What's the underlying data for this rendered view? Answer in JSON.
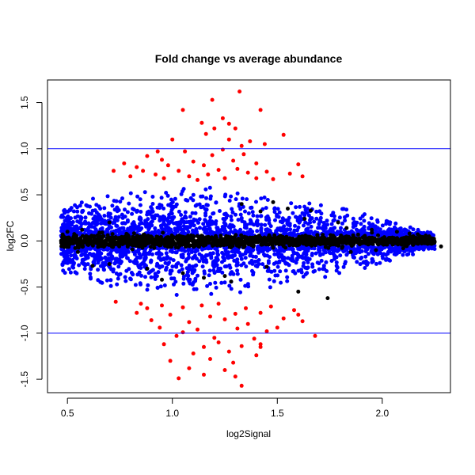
{
  "chart_data": {
    "type": "scatter",
    "title": "Fold change vs average abundance",
    "xlabel": "log2Signal",
    "ylabel": "log2FC",
    "xlim": [
      0.405,
      2.325
    ],
    "ylim": [
      -1.645,
      1.745
    ],
    "x_ticks": [
      0.5,
      1.0,
      1.5,
      2.0
    ],
    "x_tick_labels": [
      "0.5",
      "1.0",
      "1.5",
      "2.0"
    ],
    "y_ticks": [
      -1.5,
      -1.0,
      -0.5,
      0.0,
      0.5,
      1.0,
      1.5
    ],
    "y_tick_labels": [
      "-1.5",
      "-1.0",
      "-0.5",
      "0.0",
      "0.5",
      "1.0",
      "1.5"
    ],
    "grid": false,
    "legend": "none",
    "reference_lines": [
      {
        "axis": "y",
        "value": 1.0,
        "color": "#0000ff"
      },
      {
        "axis": "y",
        "value": -1.0,
        "color": "#0000ff"
      }
    ],
    "colors": {
      "not_significant": "#000000",
      "significant": "#0000ff",
      "significant_large_fc": "#ff0000"
    },
    "series": [
      {
        "color": "#ff0000",
        "points": [
          [
            1.32,
            1.62
          ],
          [
            1.19,
            1.53
          ],
          [
            1.05,
            1.42
          ],
          [
            1.42,
            1.42
          ],
          [
            1.24,
            1.33
          ],
          [
            1.27,
            1.27
          ],
          [
            1.3,
            1.22
          ],
          [
            1.2,
            1.22
          ],
          [
            1.14,
            1.28
          ],
          [
            1.53,
            1.15
          ],
          [
            1.16,
            1.16
          ],
          [
            1.0,
            1.1
          ],
          [
            0.93,
            0.97
          ],
          [
            1.27,
            1.1
          ],
          [
            1.37,
            1.08
          ],
          [
            1.33,
            1.03
          ],
          [
            1.44,
            1.05
          ],
          [
            1.24,
            0.99
          ],
          [
            0.88,
            0.92
          ],
          [
            1.06,
            0.97
          ],
          [
            1.19,
            0.93
          ],
          [
            1.34,
            0.94
          ],
          [
            0.95,
            0.88
          ],
          [
            1.1,
            0.86
          ],
          [
            1.29,
            0.87
          ],
          [
            0.77,
            0.84
          ],
          [
            0.83,
            0.8
          ],
          [
            0.98,
            0.82
          ],
          [
            1.15,
            0.82
          ],
          [
            1.4,
            0.84
          ],
          [
            0.72,
            0.76
          ],
          [
            0.86,
            0.76
          ],
          [
            0.92,
            0.72
          ],
          [
            1.03,
            0.76
          ],
          [
            1.22,
            0.77
          ],
          [
            1.31,
            0.78
          ],
          [
            1.36,
            0.74
          ],
          [
            1.6,
            0.83
          ],
          [
            0.8,
            0.7
          ],
          [
            0.96,
            0.68
          ],
          [
            1.08,
            0.7
          ],
          [
            1.17,
            0.72
          ],
          [
            1.25,
            0.68
          ],
          [
            1.45,
            0.75
          ],
          [
            1.56,
            0.73
          ],
          [
            1.48,
            0.67
          ],
          [
            1.62,
            0.7
          ],
          [
            1.12,
            0.66
          ],
          [
            1.4,
            0.68
          ],
          [
            0.73,
            -0.66
          ],
          [
            0.85,
            -0.68
          ],
          [
            0.95,
            -0.7
          ],
          [
            1.05,
            -0.72
          ],
          [
            1.14,
            -0.7
          ],
          [
            1.22,
            -0.68
          ],
          [
            1.35,
            -0.73
          ],
          [
            1.47,
            -0.71
          ],
          [
            1.58,
            -0.75
          ],
          [
            0.83,
            -0.78
          ],
          [
            0.99,
            -0.8
          ],
          [
            1.18,
            -0.82
          ],
          [
            1.3,
            -0.79
          ],
          [
            1.42,
            -0.78
          ],
          [
            1.53,
            -0.84
          ],
          [
            0.9,
            -0.86
          ],
          [
            1.08,
            -0.88
          ],
          [
            1.25,
            -0.85
          ],
          [
            1.36,
            -0.9
          ],
          [
            1.62,
            -0.87
          ],
          [
            0.94,
            -0.94
          ],
          [
            1.12,
            -0.96
          ],
          [
            1.31,
            -0.95
          ],
          [
            1.5,
            -0.94
          ],
          [
            1.68,
            -1.03
          ],
          [
            1.02,
            -1.03
          ],
          [
            1.2,
            -1.05
          ],
          [
            1.39,
            -1.06
          ],
          [
            0.96,
            -1.12
          ],
          [
            1.15,
            -1.15
          ],
          [
            1.33,
            -1.14
          ],
          [
            1.42,
            -1.12
          ],
          [
            1.1,
            -1.22
          ],
          [
            1.27,
            -1.2
          ],
          [
            1.4,
            -1.24
          ],
          [
            0.99,
            -1.3
          ],
          [
            1.18,
            -1.28
          ],
          [
            1.29,
            -1.32
          ],
          [
            1.08,
            -1.38
          ],
          [
            1.25,
            -1.4
          ],
          [
            1.3,
            -1.47
          ],
          [
            1.15,
            -1.45
          ],
          [
            1.03,
            -1.49
          ],
          [
            1.33,
            -1.57
          ],
          [
            1.42,
            -1.15
          ],
          [
            0.88,
            -0.73
          ],
          [
            1.6,
            -0.8
          ],
          [
            1.45,
            -0.98
          ],
          [
            1.22,
            -1.1
          ],
          [
            1.05,
            -0.99
          ]
        ]
      },
      {
        "color": "#000000",
        "points": [
          [
            2.28,
            -0.06
          ],
          [
            2.24,
            0.02
          ],
          [
            2.21,
            -0.02
          ],
          [
            2.18,
            0.05
          ],
          [
            2.13,
            0.08
          ],
          [
            2.1,
            -0.08
          ],
          [
            2.07,
            0.1
          ],
          [
            2.05,
            -0.04
          ],
          [
            2.01,
            0.04
          ],
          [
            1.97,
            -0.1
          ],
          [
            1.95,
            0.12
          ],
          [
            1.91,
            -0.02
          ],
          [
            1.85,
            -0.12
          ],
          [
            1.83,
            0.14
          ],
          [
            1.74,
            -0.62
          ],
          [
            1.79,
            0.2
          ],
          [
            1.66,
            0.33
          ],
          [
            1.63,
            0.24
          ],
          [
            1.55,
            0.35
          ],
          [
            1.48,
            0.42
          ],
          [
            1.42,
            0.32
          ],
          [
            1.33,
            0.4
          ],
          [
            1.25,
            -0.38
          ],
          [
            1.15,
            -0.4
          ],
          [
            1.05,
            -0.35
          ],
          [
            0.95,
            -0.42
          ],
          [
            0.88,
            -0.3
          ],
          [
            0.7,
            -0.25
          ],
          [
            0.62,
            -0.27
          ],
          [
            0.55,
            -0.12
          ],
          [
            0.5,
            0.1
          ],
          [
            0.48,
            0.02
          ],
          [
            0.57,
            0.12
          ],
          [
            0.7,
            0.2
          ],
          [
            1.28,
            -0.44
          ],
          [
            1.45,
            -0.28
          ],
          [
            1.6,
            -0.55
          ],
          [
            1.8,
            0.04
          ],
          [
            1.98,
            0.06
          ],
          [
            2.15,
            -0.03
          ]
        ]
      }
    ],
    "cloud_bands": {
      "x_range": [
        0.47,
        2.25
      ],
      "center_x": 1.1,
      "blue_max_fc": 0.6,
      "black_band_fc": 0.06
    }
  }
}
